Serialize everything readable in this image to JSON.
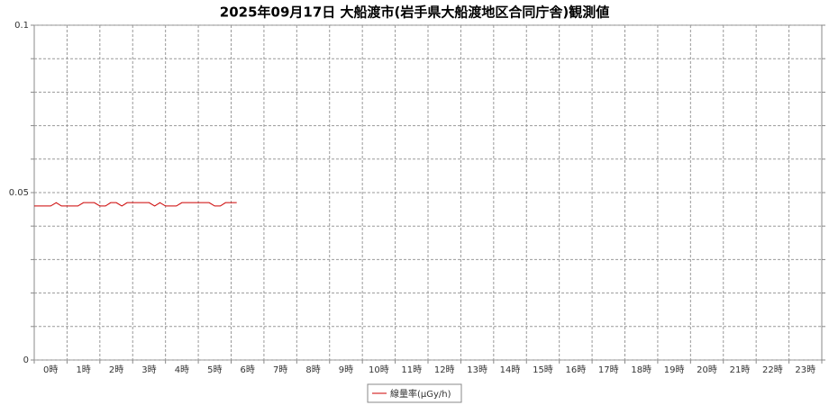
{
  "chart_data": {
    "type": "line",
    "title": "2025年09月17日 大船渡市(岩手県大船渡地区合同庁舎)観測値",
    "categories": [
      "0時",
      "1時",
      "2時",
      "3時",
      "4時",
      "5時",
      "6時",
      "7時",
      "8時",
      "9時",
      "10時",
      "11時",
      "12時",
      "13時",
      "14時",
      "15時",
      "16時",
      "17時",
      "18時",
      "19時",
      "20時",
      "21時",
      "22時",
      "23時"
    ],
    "xlim": [
      0,
      24
    ],
    "ylim": [
      0,
      0.1
    ],
    "yticks": [
      0,
      0.05,
      0.1
    ],
    "ygrid": [
      0.01,
      0.02,
      0.03,
      0.04,
      0.06,
      0.07,
      0.08,
      0.09
    ],
    "grid": true,
    "legend": "bottom",
    "series": [
      {
        "name": "線量率(μGy/h)",
        "color": "#cc0000",
        "x": [
          0,
          0.17,
          0.33,
          0.5,
          0.67,
          0.83,
          1,
          1.17,
          1.33,
          1.5,
          1.67,
          1.83,
          2,
          2.17,
          2.33,
          2.5,
          2.67,
          2.83,
          3,
          3.17,
          3.33,
          3.5,
          3.67,
          3.83,
          4,
          4.17,
          4.33,
          4.5,
          4.67,
          4.83,
          5,
          5.17,
          5.33,
          5.5,
          5.67,
          5.83,
          6,
          6.17
        ],
        "values": [
          0.046,
          0.046,
          0.046,
          0.046,
          0.047,
          0.046,
          0.046,
          0.046,
          0.046,
          0.047,
          0.047,
          0.047,
          0.046,
          0.046,
          0.047,
          0.047,
          0.046,
          0.047,
          0.047,
          0.047,
          0.047,
          0.047,
          0.046,
          0.047,
          0.046,
          0.046,
          0.046,
          0.047,
          0.047,
          0.047,
          0.047,
          0.047,
          0.047,
          0.046,
          0.046,
          0.047,
          0.047,
          0.047
        ]
      }
    ]
  }
}
